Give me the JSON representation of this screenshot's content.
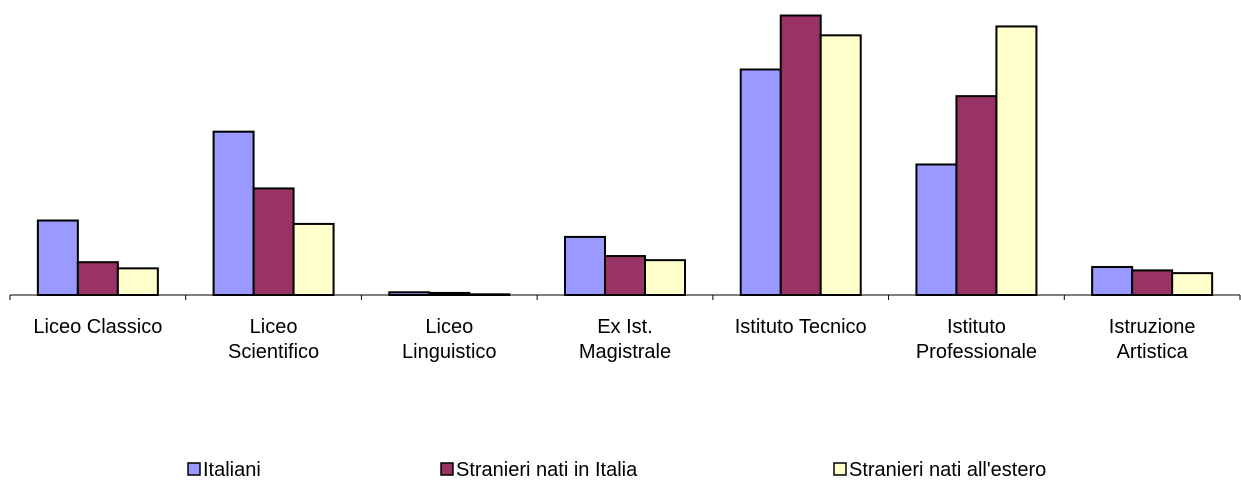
{
  "chart_data": {
    "type": "bar",
    "categories": [
      "Liceo Classico",
      "Liceo\nScientifico",
      "Liceo\nLinguistico",
      "Ex Ist.\nMagistrale",
      "Istituto Tecnico",
      "Istituto\nProfessionale",
      "Istruzione\nArtistica"
    ],
    "series": [
      {
        "name": "Italiani",
        "color": "#9999ff",
        "values": [
          10.9,
          23.9,
          0.4,
          8.5,
          33.0,
          19.1,
          4.1
        ]
      },
      {
        "name": "Stranieri nati in Italia",
        "color": "#993366",
        "values": [
          4.8,
          15.6,
          0.3,
          5.7,
          40.9,
          29.1,
          3.6
        ]
      },
      {
        "name": "Stranieri nati all'estero",
        "color": "#ffffcc",
        "values": [
          3.9,
          10.4,
          0.1,
          5.1,
          38.0,
          39.3,
          3.2
        ]
      }
    ],
    "ylim": [
      0,
      42
    ],
    "legend": "bottom"
  }
}
